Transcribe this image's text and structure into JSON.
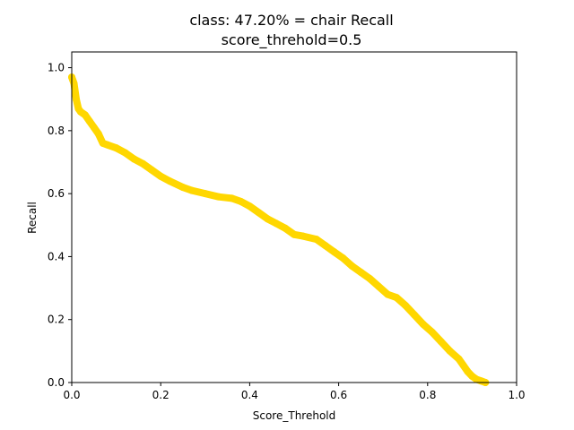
{
  "chart_data": {
    "type": "line",
    "title": "class: 47.20% = chair Recall",
    "subtitle": "score_threhold=0.5",
    "xlabel": "Score_Threhold",
    "ylabel": "Recall",
    "xlim": [
      0.0,
      1.0
    ],
    "ylim": [
      0.0,
      1.05
    ],
    "x_ticks": [
      "0.0",
      "0.2",
      "0.4",
      "0.6",
      "0.8",
      "1.0"
    ],
    "y_ticks": [
      "0.0",
      "0.2",
      "0.4",
      "0.6",
      "0.8",
      "1.0"
    ],
    "grid": false,
    "series": [
      {
        "color": "#ffd700",
        "marker": "circle",
        "x": [
          0.0,
          0.005,
          0.01,
          0.015,
          0.02,
          0.03,
          0.04,
          0.05,
          0.06,
          0.07,
          0.08,
          0.1,
          0.12,
          0.14,
          0.16,
          0.18,
          0.2,
          0.22,
          0.25,
          0.27,
          0.3,
          0.33,
          0.36,
          0.38,
          0.4,
          0.42,
          0.44,
          0.46,
          0.48,
          0.5,
          0.52,
          0.55,
          0.57,
          0.59,
          0.61,
          0.63,
          0.65,
          0.67,
          0.69,
          0.71,
          0.73,
          0.75,
          0.77,
          0.79,
          0.81,
          0.83,
          0.85,
          0.87,
          0.88,
          0.89,
          0.9,
          0.91,
          0.92,
          0.93
        ],
        "y": [
          0.97,
          0.95,
          0.9,
          0.87,
          0.86,
          0.85,
          0.83,
          0.81,
          0.79,
          0.76,
          0.755,
          0.745,
          0.73,
          0.71,
          0.695,
          0.675,
          0.655,
          0.64,
          0.62,
          0.61,
          0.6,
          0.59,
          0.585,
          0.575,
          0.56,
          0.54,
          0.52,
          0.505,
          0.49,
          0.47,
          0.465,
          0.455,
          0.435,
          0.415,
          0.395,
          0.37,
          0.35,
          0.33,
          0.305,
          0.28,
          0.27,
          0.245,
          0.215,
          0.185,
          0.16,
          0.13,
          0.1,
          0.075,
          0.055,
          0.035,
          0.02,
          0.01,
          0.005,
          0.0
        ]
      }
    ]
  }
}
